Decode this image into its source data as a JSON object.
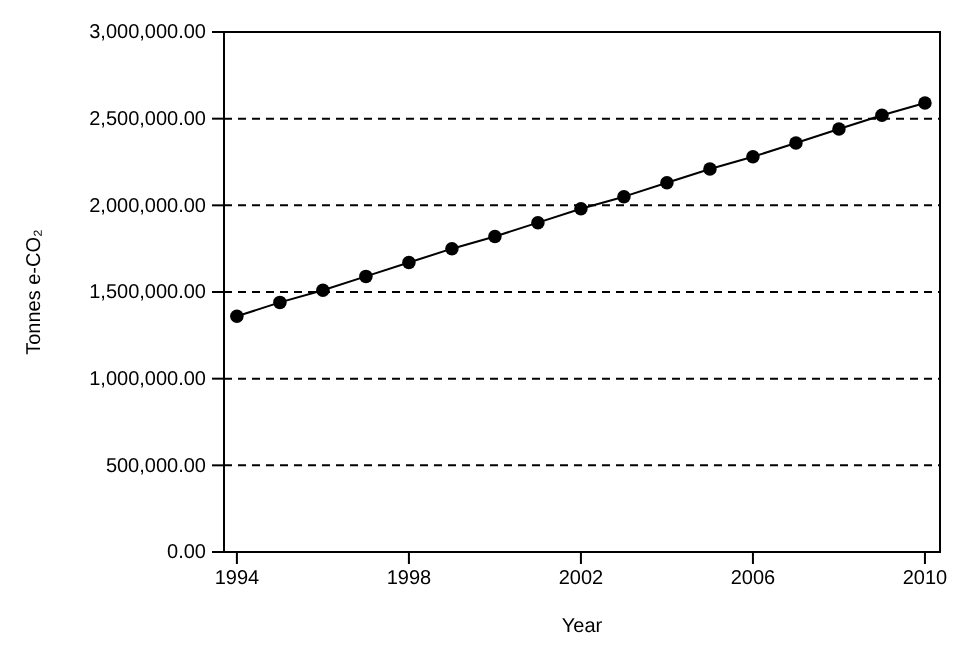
{
  "chart_data": {
    "type": "line",
    "xlabel": "Year",
    "ylabel": "Tonnes e-CO₂",
    "x": [
      1994,
      1995,
      1996,
      1997,
      1998,
      1999,
      2000,
      2001,
      2002,
      2003,
      2004,
      2005,
      2006,
      2007,
      2008,
      2009,
      2010
    ],
    "series": [
      {
        "color": "#000000",
        "values": [
          1360000,
          1440000,
          1510000,
          1590000,
          1670000,
          1750000,
          1820000,
          1900000,
          1980000,
          2050000,
          2130000,
          2210000,
          2280000,
          2360000,
          2440000,
          2520000,
          2590000
        ]
      }
    ],
    "xlim": [
      1993.7,
      2010.35
    ],
    "xticks": [
      1994,
      1998,
      2002,
      2006,
      2010
    ],
    "ylim": [
      0,
      3000000
    ],
    "yticks": [
      {
        "value": 0,
        "label": "0.00"
      },
      {
        "value": 500000,
        "label": "500,000.00"
      },
      {
        "value": 1000000,
        "label": "1,000,000.00"
      },
      {
        "value": 1500000,
        "label": "1,500,000.00"
      },
      {
        "value": 2000000,
        "label": "2,000,000.00"
      },
      {
        "value": 2500000,
        "label": "2,500,000.00"
      },
      {
        "value": 3000000,
        "label": "3,000,000.00"
      }
    ],
    "grid": "y",
    "marker": "circle",
    "line_style": "solid"
  }
}
